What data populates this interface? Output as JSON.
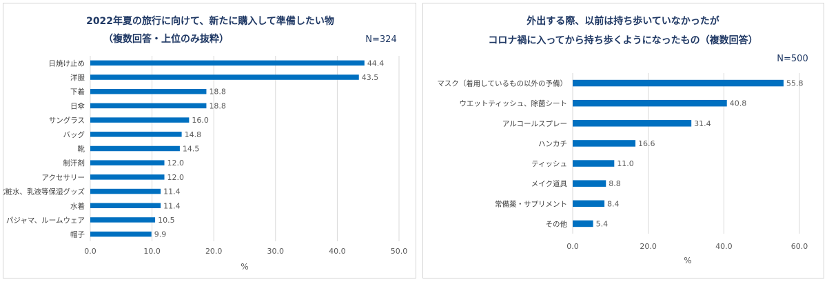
{
  "chart_data": [
    {
      "type": "bar",
      "orientation": "horizontal",
      "title": "2022年夏の旅行に向けて、新たに購入して準備したい物",
      "subtitle": "（複数回答・上位のみ抜粋）",
      "n_label": "N=324",
      "categories": [
        "日焼け止め",
        "洋服",
        "下着",
        "日傘",
        "サングラス",
        "バッグ",
        "靴",
        "制汗剤",
        "アクセサリー",
        "化粧水、乳液等保湿グッズ",
        "水着",
        "パジャマ、ルームウェア",
        "帽子"
      ],
      "values": [
        44.4,
        43.5,
        18.8,
        18.8,
        16.0,
        14.8,
        14.5,
        12.0,
        12.0,
        11.4,
        11.4,
        10.5,
        9.9
      ],
      "value_labels": [
        "44.4",
        "43.5",
        "18.8",
        "18.8",
        "16.0",
        "14.8",
        "14.5",
        "12.0",
        "12.0",
        "11.4",
        "11.4",
        "10.5",
        "9.9"
      ],
      "xlim": [
        0,
        50
      ],
      "xticks": [
        "0.0",
        "10.0",
        "20.0",
        "30.0",
        "40.0",
        "50.0"
      ],
      "xlabel": "%",
      "grid": true,
      "color": "#0070c0"
    },
    {
      "type": "bar",
      "orientation": "horizontal",
      "title": "外出する際、以前は持ち歩いていなかったが",
      "subtitle": "コロナ禍に入ってから持ち歩くようになったもの（複数回答）",
      "n_label": "N=500",
      "categories": [
        "マスク（着用しているもの以外の予備）",
        "ウエットティッシュ、除菌シート",
        "アルコールスプレー",
        "ハンカチ",
        "ティッシュ",
        "メイク道具",
        "常備薬・サプリメント",
        "その他"
      ],
      "values": [
        55.8,
        40.8,
        31.4,
        16.6,
        11.0,
        8.8,
        8.4,
        5.4
      ],
      "value_labels": [
        "55.8",
        "40.8",
        "31.4",
        "16.6",
        "11.0",
        "8.8",
        "8.4",
        "5.4"
      ],
      "xlim": [
        0,
        60
      ],
      "xticks": [
        "0.0",
        "20.0",
        "40.0",
        "60.0"
      ],
      "xlabel": "%",
      "grid": true,
      "color": "#0070c0"
    }
  ]
}
